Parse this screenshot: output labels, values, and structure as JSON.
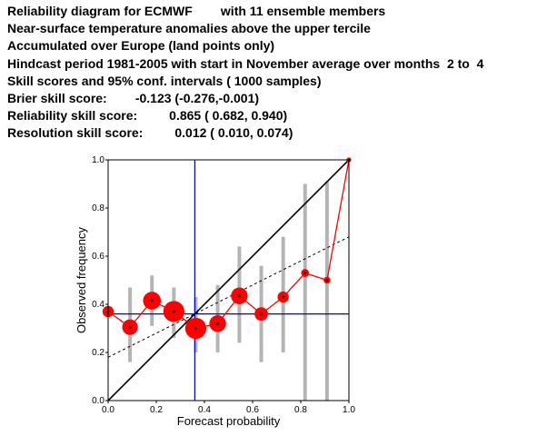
{
  "header": {
    "lines": [
      "Reliability diagram for ECMWF        with 11 ensemble members",
      "Near-surface temperature anomalies above the upper tercile",
      "Accumulated over Europe (land points only)",
      "Hindcast period 1981-2005 with start in November average over months  2 to  4",
      "Skill scores and 95% conf. intervals ( 1000 samples)",
      "Brier skill score:        -0.123 (-0.276,-0.001)",
      "Reliability skill score:         0.865 ( 0.682, 0.940)",
      "Resolution skill score:         0.012 ( 0.010, 0.074)"
    ]
  },
  "chart_data": {
    "type": "scatter",
    "xlabel": "Forecast probability",
    "ylabel": "Observed frequency",
    "xlim": [
      0,
      1
    ],
    "ylim": [
      0,
      1
    ],
    "x_ticks": [
      "0.0",
      "0.2",
      "0.4",
      "0.6",
      "0.8",
      "1.0"
    ],
    "y_ticks": [
      "0.0",
      "0.2",
      "0.4",
      "0.6",
      "0.8",
      "1.0"
    ],
    "climatology": 0.36,
    "skill_line": {
      "x": [
        0,
        1
      ],
      "y": [
        0.18,
        0.68
      ]
    },
    "colors": {
      "points": "#ff0000",
      "climatology": "#0000cc",
      "ci": "#b4b4b4",
      "diagonal": "#000000"
    },
    "points": [
      {
        "x": 0.0,
        "y": 0.37,
        "size": 0.35,
        "ci": [
          null,
          null
        ]
      },
      {
        "x": 0.091,
        "y": 0.305,
        "size": 0.55,
        "ci": [
          0.16,
          0.47
        ]
      },
      {
        "x": 0.182,
        "y": 0.415,
        "size": 0.65,
        "ci": [
          0.31,
          0.52
        ]
      },
      {
        "x": 0.273,
        "y": 0.37,
        "size": 0.8,
        "ci": [
          0.26,
          0.47
        ]
      },
      {
        "x": 0.364,
        "y": 0.3,
        "size": 0.8,
        "ci": [
          0.2,
          0.43
        ]
      },
      {
        "x": 0.455,
        "y": 0.32,
        "size": 0.6,
        "ci": [
          0.2,
          0.48
        ]
      },
      {
        "x": 0.545,
        "y": 0.435,
        "size": 0.6,
        "ci": [
          0.24,
          0.64
        ]
      },
      {
        "x": 0.636,
        "y": 0.36,
        "size": 0.45,
        "ci": [
          0.16,
          0.56
        ]
      },
      {
        "x": 0.727,
        "y": 0.43,
        "size": 0.35,
        "ci": [
          0.2,
          0.68
        ]
      },
      {
        "x": 0.818,
        "y": 0.53,
        "size": 0.2,
        "ci": [
          0.0,
          0.9
        ]
      },
      {
        "x": 0.909,
        "y": 0.5,
        "size": 0.15,
        "ci": [
          0.0,
          0.91
        ]
      },
      {
        "x": 1.0,
        "y": 1.0,
        "size": 0.05,
        "ci": [
          null,
          null
        ]
      }
    ]
  }
}
